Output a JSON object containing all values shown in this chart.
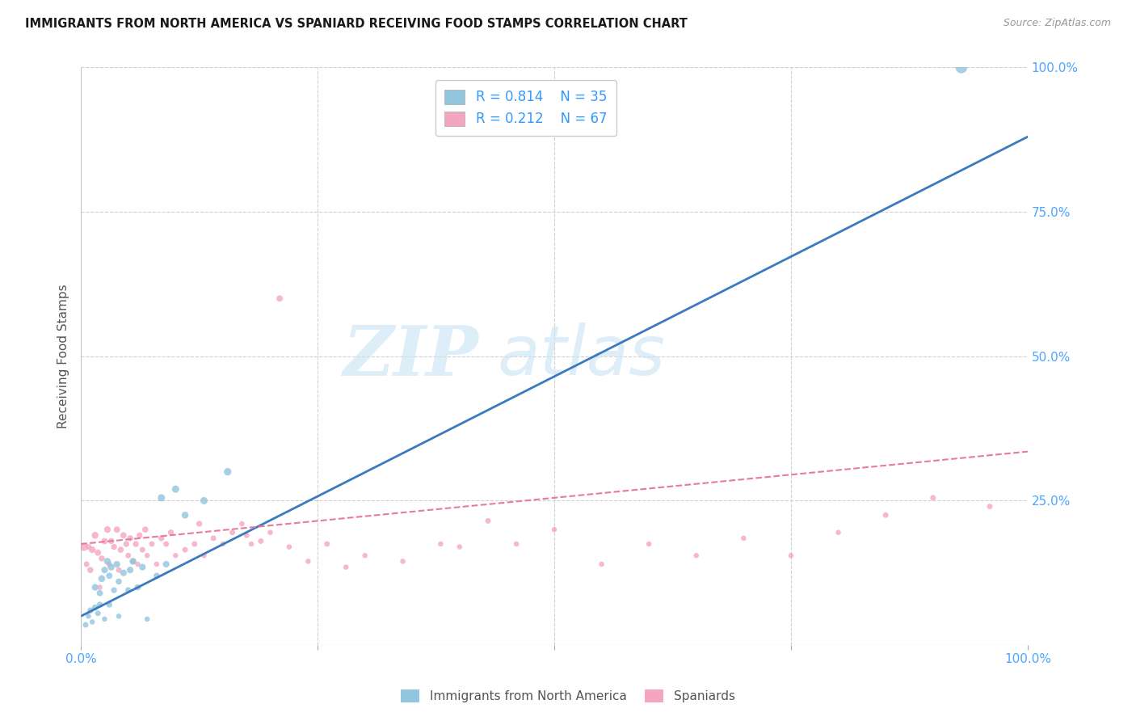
{
  "title": "IMMIGRANTS FROM NORTH AMERICA VS SPANIARD RECEIVING FOOD STAMPS CORRELATION CHART",
  "source": "Source: ZipAtlas.com",
  "ylabel": "Receiving Food Stamps",
  "xlim": [
    0,
    1
  ],
  "ylim": [
    0,
    1
  ],
  "legend_r1": "0.814",
  "legend_n1": "35",
  "legend_r2": "0.212",
  "legend_n2": "67",
  "color_blue": "#92c5de",
  "color_pink": "#f4a6c0",
  "line_blue": "#3a7abf",
  "line_pink": "#e87aa0",
  "watermark_zip": "ZIP",
  "watermark_atlas": "atlas",
  "blue_line_x0": 0.0,
  "blue_line_y0": 0.05,
  "blue_line_x1": 1.0,
  "blue_line_y1": 0.88,
  "pink_line_x0": 0.0,
  "pink_line_y0": 0.175,
  "pink_line_x1": 1.0,
  "pink_line_y1": 0.335,
  "blue_scatter_x": [
    0.005,
    0.008,
    0.01,
    0.012,
    0.015,
    0.015,
    0.018,
    0.02,
    0.02,
    0.022,
    0.025,
    0.025,
    0.028,
    0.03,
    0.03,
    0.032,
    0.035,
    0.038,
    0.04,
    0.04,
    0.045,
    0.05,
    0.052,
    0.055,
    0.06,
    0.065,
    0.07,
    0.08,
    0.085,
    0.09,
    0.1,
    0.11,
    0.13,
    0.155,
    0.93
  ],
  "blue_scatter_y": [
    0.035,
    0.05,
    0.06,
    0.04,
    0.065,
    0.1,
    0.055,
    0.07,
    0.09,
    0.115,
    0.045,
    0.13,
    0.145,
    0.07,
    0.12,
    0.135,
    0.095,
    0.14,
    0.05,
    0.11,
    0.125,
    0.095,
    0.13,
    0.145,
    0.1,
    0.135,
    0.045,
    0.12,
    0.255,
    0.14,
    0.27,
    0.225,
    0.25,
    0.3,
    1.0
  ],
  "pink_scatter_x": [
    0.003,
    0.006,
    0.008,
    0.01,
    0.012,
    0.015,
    0.018,
    0.02,
    0.022,
    0.025,
    0.028,
    0.03,
    0.032,
    0.035,
    0.038,
    0.04,
    0.042,
    0.045,
    0.048,
    0.05,
    0.052,
    0.055,
    0.058,
    0.06,
    0.062,
    0.065,
    0.068,
    0.07,
    0.075,
    0.08,
    0.085,
    0.09,
    0.095,
    0.1,
    0.11,
    0.12,
    0.125,
    0.13,
    0.14,
    0.15,
    0.16,
    0.17,
    0.175,
    0.18,
    0.19,
    0.2,
    0.21,
    0.22,
    0.24,
    0.26,
    0.28,
    0.3,
    0.34,
    0.38,
    0.4,
    0.43,
    0.46,
    0.5,
    0.55,
    0.6,
    0.65,
    0.7,
    0.75,
    0.8,
    0.85,
    0.9,
    0.96
  ],
  "pink_scatter_y": [
    0.17,
    0.14,
    0.17,
    0.13,
    0.165,
    0.19,
    0.16,
    0.1,
    0.15,
    0.18,
    0.2,
    0.14,
    0.18,
    0.17,
    0.2,
    0.13,
    0.165,
    0.19,
    0.175,
    0.155,
    0.185,
    0.145,
    0.175,
    0.14,
    0.19,
    0.165,
    0.2,
    0.155,
    0.175,
    0.14,
    0.185,
    0.175,
    0.195,
    0.155,
    0.165,
    0.175,
    0.21,
    0.155,
    0.185,
    0.175,
    0.195,
    0.21,
    0.19,
    0.175,
    0.18,
    0.195,
    0.6,
    0.17,
    0.145,
    0.175,
    0.135,
    0.155,
    0.145,
    0.175,
    0.17,
    0.215,
    0.175,
    0.2,
    0.14,
    0.175,
    0.155,
    0.185,
    0.155,
    0.195,
    0.225,
    0.255,
    0.24
  ],
  "blue_sizes": [
    25,
    22,
    28,
    22,
    30,
    35,
    25,
    28,
    32,
    38,
    22,
    35,
    38,
    28,
    32,
    38,
    28,
    35,
    22,
    30,
    35,
    28,
    35,
    38,
    30,
    35,
    22,
    30,
    42,
    35,
    42,
    38,
    42,
    45,
    110
  ],
  "pink_sizes": [
    55,
    25,
    28,
    30,
    35,
    38,
    32,
    22,
    28,
    32,
    35,
    25,
    30,
    28,
    32,
    25,
    30,
    32,
    28,
    25,
    30,
    25,
    28,
    22,
    28,
    25,
    30,
    22,
    25,
    22,
    28,
    25,
    28,
    22,
    25,
    25,
    28,
    22,
    25,
    22,
    25,
    22,
    25,
    22,
    25,
    22,
    32,
    22,
    22,
    25,
    22,
    22,
    22,
    22,
    22,
    25,
    22,
    22,
    22,
    22,
    22,
    22,
    22,
    22,
    25,
    25,
    25
  ]
}
